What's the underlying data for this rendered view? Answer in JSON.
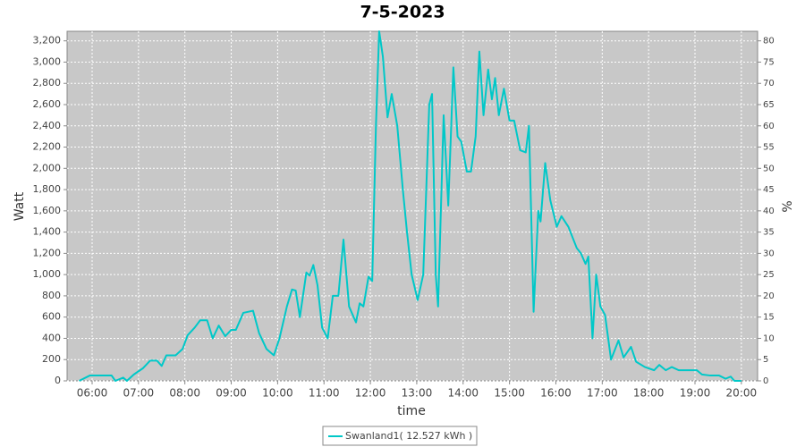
{
  "chart_data": {
    "type": "line",
    "title": "7-5-2023",
    "x_label": "time",
    "y_label": "Watt",
    "y2_label": "%",
    "grid": true,
    "legend": "bottom",
    "xlim": [
      5.46,
      20.35
    ],
    "xticks": [
      {
        "value": 6,
        "label": "06:00"
      },
      {
        "value": 7,
        "label": "07:00"
      },
      {
        "value": 8,
        "label": "08:00"
      },
      {
        "value": 9,
        "label": "09:00"
      },
      {
        "value": 10,
        "label": "10:00"
      },
      {
        "value": 11,
        "label": "11:00"
      },
      {
        "value": 12,
        "label": "12:00"
      },
      {
        "value": 13,
        "label": "13:00"
      },
      {
        "value": 14,
        "label": "14:00"
      },
      {
        "value": 15,
        "label": "15:00"
      },
      {
        "value": 16,
        "label": "16:00"
      },
      {
        "value": 17,
        "label": "17:00"
      },
      {
        "value": 18,
        "label": "18:00"
      },
      {
        "value": 19,
        "label": "19:00"
      },
      {
        "value": 20,
        "label": "20:00"
      }
    ],
    "ylim": [
      0,
      3290
    ],
    "yticks": [
      0,
      200,
      400,
      600,
      800,
      {
        "value": 1000,
        "label": "1,000"
      },
      {
        "value": 1200,
        "label": "1,200"
      },
      {
        "value": 1400,
        "label": "1,400"
      },
      {
        "value": 1600,
        "label": "1,600"
      },
      {
        "value": 1800,
        "label": "1,800"
      },
      {
        "value": 2000,
        "label": "2,000"
      },
      {
        "value": 2200,
        "label": "2,200"
      },
      {
        "value": 2400,
        "label": "2,400"
      },
      {
        "value": 2600,
        "label": "2,600"
      },
      {
        "value": 2800,
        "label": "2,800"
      },
      {
        "value": 3000,
        "label": "3,000"
      },
      {
        "value": 3200,
        "label": "3,200"
      }
    ],
    "y2lim": [
      0,
      82.25
    ],
    "y2ticks": [
      0,
      5,
      10,
      15,
      20,
      25,
      30,
      35,
      40,
      45,
      50,
      55,
      60,
      65,
      70,
      75,
      80
    ],
    "x": [
      5.72,
      5.95,
      6.42,
      6.5,
      6.67,
      6.75,
      6.9,
      7.1,
      7.25,
      7.4,
      7.5,
      7.6,
      7.8,
      7.95,
      8.06,
      8.21,
      8.33,
      8.48,
      8.6,
      8.73,
      8.87,
      9.0,
      9.1,
      9.26,
      9.47,
      9.6,
      9.76,
      9.92,
      10.04,
      10.2,
      10.31,
      10.39,
      10.48,
      10.62,
      10.69,
      10.77,
      10.86,
      10.96,
      11.08,
      11.19,
      11.31,
      11.42,
      11.54,
      11.69,
      11.77,
      11.85,
      11.96,
      12.04,
      12.12,
      12.19,
      12.27,
      12.37,
      12.46,
      12.58,
      12.7,
      12.79,
      12.89,
      13.02,
      13.14,
      13.27,
      13.33,
      13.41,
      13.46,
      13.58,
      13.68,
      13.79,
      13.88,
      13.96,
      14.08,
      14.17,
      14.27,
      14.35,
      14.44,
      14.54,
      14.62,
      14.69,
      14.77,
      14.88,
      15.0,
      15.1,
      15.23,
      15.35,
      15.42,
      15.52,
      15.62,
      15.67,
      15.77,
      15.88,
      16.02,
      16.12,
      16.27,
      16.45,
      16.54,
      16.64,
      16.7,
      16.79,
      16.87,
      16.96,
      17.06,
      17.19,
      17.35,
      17.46,
      17.62,
      17.73,
      17.92,
      18.12,
      18.23,
      18.37,
      18.5,
      18.65,
      18.94,
      19.04,
      19.15,
      19.33,
      19.52,
      19.66,
      19.77,
      19.85,
      20.0
    ],
    "series": [
      {
        "name": "Swanland1( 12.527 kWh )",
        "color": "#00c8c8",
        "values": [
          0,
          50,
          50,
          0,
          30,
          0,
          60,
          120,
          190,
          190,
          140,
          240,
          240,
          300,
          430,
          500,
          570,
          570,
          400,
          520,
          420,
          480,
          480,
          640,
          660,
          450,
          300,
          240,
          400,
          700,
          860,
          850,
          600,
          1020,
          990,
          1090,
          900,
          500,
          400,
          800,
          800,
          1330,
          700,
          550,
          730,
          700,
          980,
          940,
          2400,
          3290,
          3050,
          2480,
          2700,
          2400,
          1800,
          1400,
          1000,
          760,
          1000,
          2600,
          2700,
          1000,
          700,
          2500,
          1650,
          2950,
          2300,
          2250,
          1970,
          1970,
          2300,
          3100,
          2500,
          2930,
          2650,
          2850,
          2500,
          2750,
          2450,
          2450,
          2170,
          2150,
          2400,
          650,
          1600,
          1500,
          2050,
          1700,
          1450,
          1550,
          1450,
          1250,
          1200,
          1100,
          1170,
          400,
          1000,
          700,
          620,
          200,
          380,
          220,
          320,
          180,
          130,
          100,
          150,
          100,
          130,
          100,
          100,
          100,
          60,
          50,
          50,
          20,
          40,
          0,
          0
        ]
      }
    ]
  }
}
